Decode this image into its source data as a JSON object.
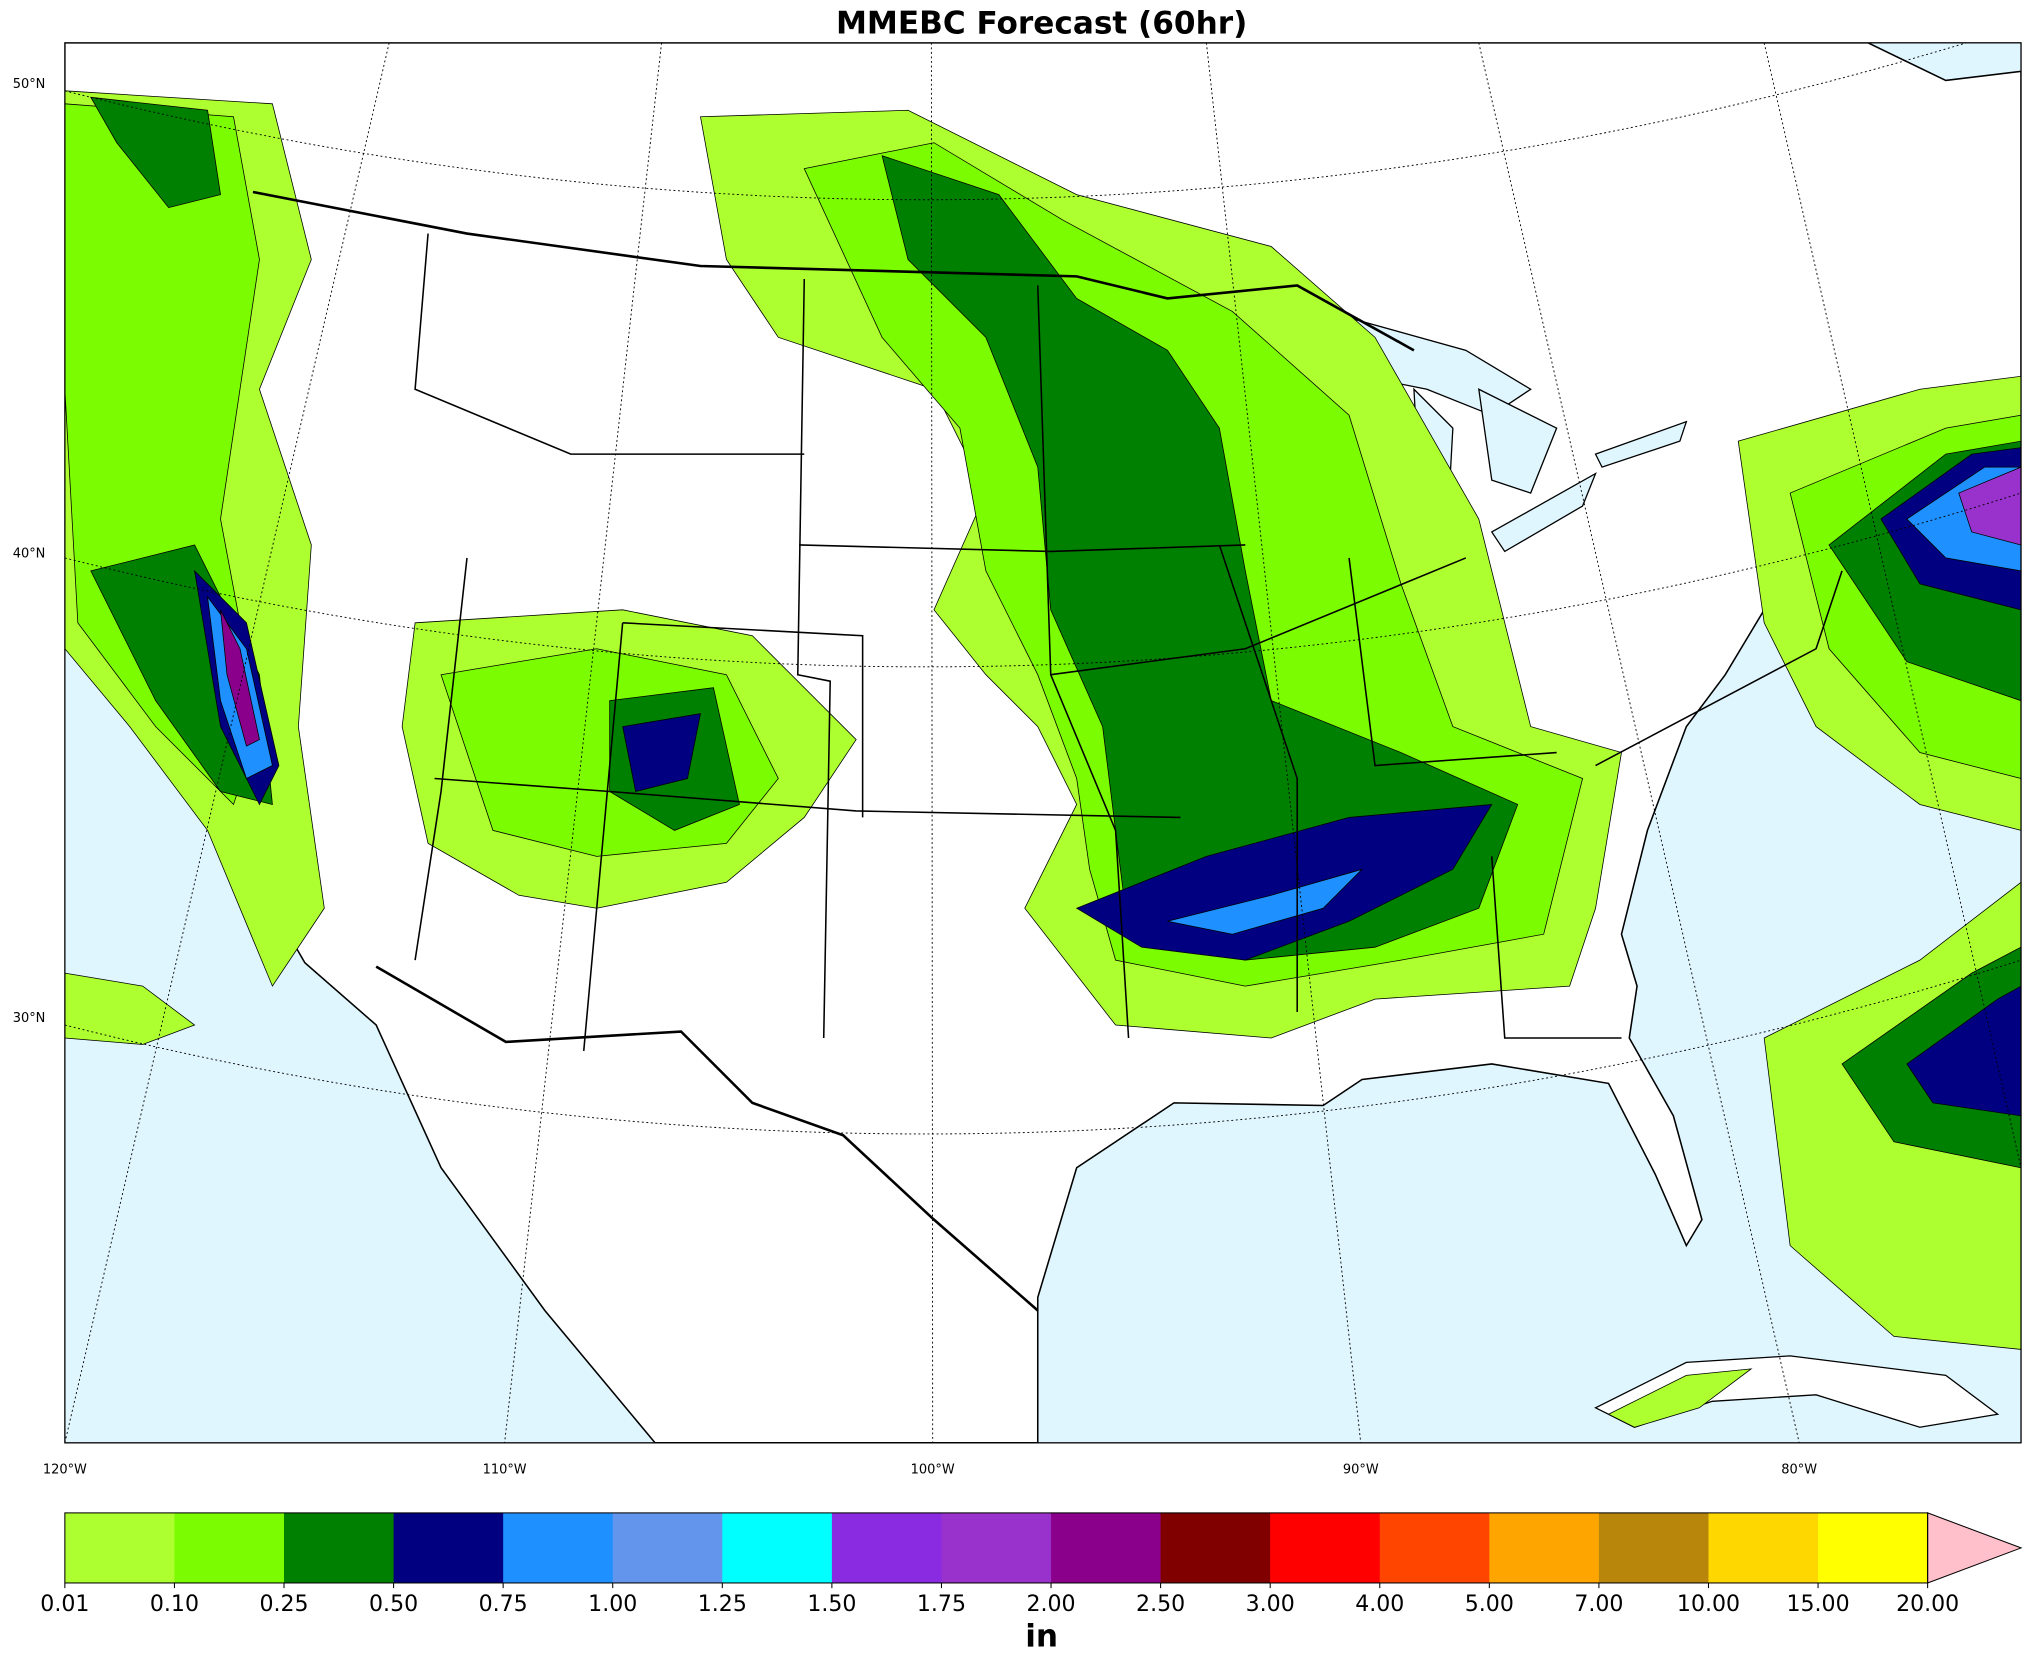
{
  "title": "MMEBC Forecast (60hr)",
  "lat_labels": [
    "50°N",
    "40°N",
    "30°N"
  ],
  "lon_labels": [
    "120°W",
    "110°W",
    "100°W",
    "90°W",
    "80°W"
  ],
  "colorbar": {
    "levels": [
      "0.01",
      "0.10",
      "0.25",
      "0.50",
      "0.75",
      "1.00",
      "1.25",
      "1.50",
      "1.75",
      "2.00",
      "2.50",
      "3.00",
      "4.00",
      "5.00",
      "7.00",
      "10.00",
      "15.00",
      "20.00"
    ],
    "colors": [
      "#adff2f",
      "#7cfc00",
      "#008000",
      "#000080",
      "#1e90ff",
      "#6495ed",
      "#00ffff",
      "#8a2be2",
      "#9932cc",
      "#8b008b",
      "#800000",
      "#ff0000",
      "#ff4500",
      "#ffa500",
      "#b8860b",
      "#ffd700",
      "#ffff00"
    ],
    "extend_color": "#ffc0cb",
    "unit": "in"
  }
}
